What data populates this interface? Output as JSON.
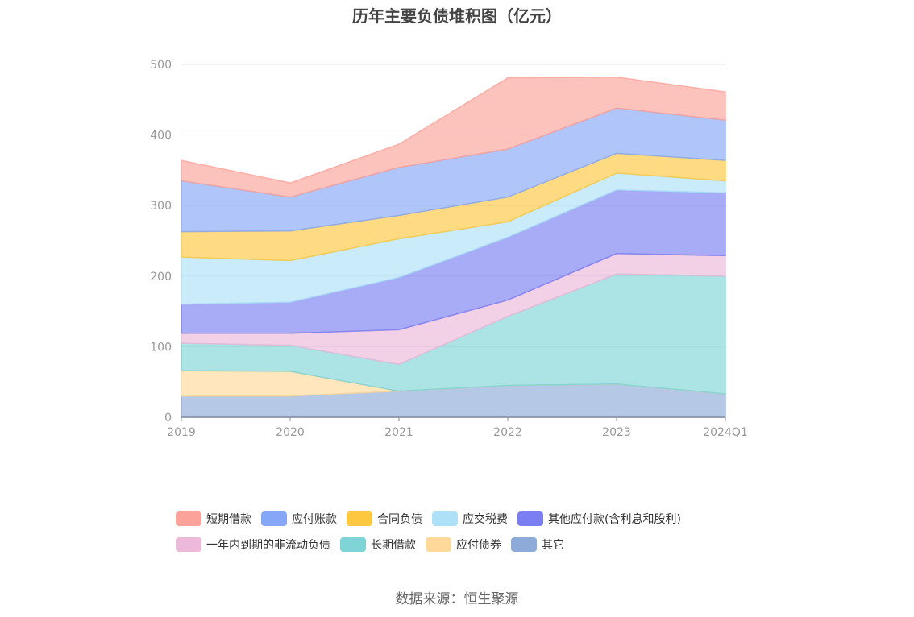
{
  "title": "历年主要负债堆积图（亿元）",
  "source": "数据来源：恒生聚源",
  "chart_data": {
    "type": "area",
    "stacked": true,
    "title": "历年主要负债堆积图（亿元）",
    "categories": [
      "2019",
      "2020",
      "2021",
      "2022",
      "2023",
      "2024Q1"
    ],
    "ylim": [
      0,
      500
    ],
    "yticks": [
      0,
      100,
      200,
      300,
      400,
      500
    ],
    "grid": true,
    "legend_position": "bottom",
    "series": [
      {
        "name": "其它",
        "color": "#8eaad9",
        "values": [
          30,
          30,
          37,
          45,
          47,
          33
        ]
      },
      {
        "name": "应付债券",
        "color": "#ffd99a",
        "values": [
          36,
          35,
          0,
          0,
          0,
          0
        ]
      },
      {
        "name": "长期借款",
        "color": "#7fd4d6",
        "values": [
          39,
          37,
          38,
          98,
          156,
          167
        ]
      },
      {
        "name": "一年内到期的非流动负债",
        "color": "#ebb9d9",
        "values": [
          14,
          17,
          49,
          23,
          29,
          29
        ]
      },
      {
        "name": "其他应付款(含利息和股利)",
        "color": "#7a7ef0",
        "values": [
          41,
          44,
          74,
          89,
          90,
          89
        ]
      },
      {
        "name": "应交税费",
        "color": "#aee0f8",
        "values": [
          67,
          59,
          55,
          22,
          24,
          17
        ]
      },
      {
        "name": "合同负债",
        "color": "#fdc840",
        "values": [
          36,
          42,
          33,
          35,
          28,
          29
        ]
      },
      {
        "name": "应付账款",
        "color": "#86a7f8",
        "values": [
          72,
          48,
          68,
          68,
          64,
          57
        ]
      },
      {
        "name": "短期借款",
        "color": "#fba39a",
        "values": [
          29,
          20,
          33,
          101,
          44,
          40
        ]
      }
    ]
  },
  "legend": {
    "row1": [
      {
        "label": "短期借款",
        "color": "#fba39a"
      },
      {
        "label": "应付账款",
        "color": "#86a7f8"
      },
      {
        "label": "合同负债",
        "color": "#fdc840"
      },
      {
        "label": "应交税费",
        "color": "#aee0f8"
      },
      {
        "label": "其他应付款(含利息和股利)",
        "color": "#7a7ef0"
      }
    ],
    "row2": [
      {
        "label": "一年内到期的非流动负债",
        "color": "#ebb9d9"
      },
      {
        "label": "长期借款",
        "color": "#7fd4d6"
      },
      {
        "label": "应付债券",
        "color": "#ffd99a"
      },
      {
        "label": "其它",
        "color": "#8eaad9"
      }
    ]
  }
}
